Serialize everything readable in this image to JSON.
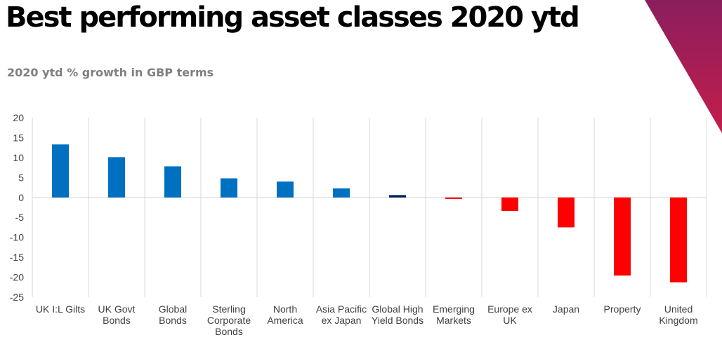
{
  "slide": {
    "title": "Best performing asset classes 2020 ytd",
    "subtitle": "2020 ytd % growth in GBP terms"
  },
  "colors": {
    "positive": "#0070C0",
    "highlight": "#002060",
    "negative": "#FF0000",
    "gridline": "#D9D9D9",
    "corner_gradient": [
      "#8B1E5E",
      "#C41E4A"
    ]
  },
  "chart_data": {
    "type": "bar",
    "title": "",
    "xlabel": "",
    "ylabel": "",
    "ylim": [
      -25,
      20
    ],
    "yticks": [
      20,
      15,
      10,
      5,
      0,
      -5,
      -10,
      -15,
      -20,
      -25
    ],
    "grid": true,
    "legend": "none",
    "categories": [
      [
        "UK I:L Gilts"
      ],
      [
        "UK Govt",
        "Bonds"
      ],
      [
        "Global",
        "Bonds"
      ],
      [
        "Sterling",
        "Corporate",
        "Bonds"
      ],
      [
        "North",
        "America"
      ],
      [
        "Asia Pacific",
        "ex Japan"
      ],
      [
        "Global High",
        "Yield Bonds"
      ],
      [
        "Emerging",
        "Markets"
      ],
      [
        "Europe ex",
        "UK"
      ],
      [
        "Japan"
      ],
      [
        "Property"
      ],
      [
        "United",
        "Kingdom"
      ]
    ],
    "values": [
      13.3,
      10.1,
      7.8,
      4.8,
      4.0,
      2.3,
      0.6,
      -0.4,
      -3.4,
      -7.5,
      -19.6,
      -21.3
    ],
    "bar_colors": [
      "#0070C0",
      "#0070C0",
      "#0070C0",
      "#0070C0",
      "#0070C0",
      "#0070C0",
      "#002060",
      "#FF0000",
      "#FF0000",
      "#FF0000",
      "#FF0000",
      "#FF0000"
    ]
  }
}
